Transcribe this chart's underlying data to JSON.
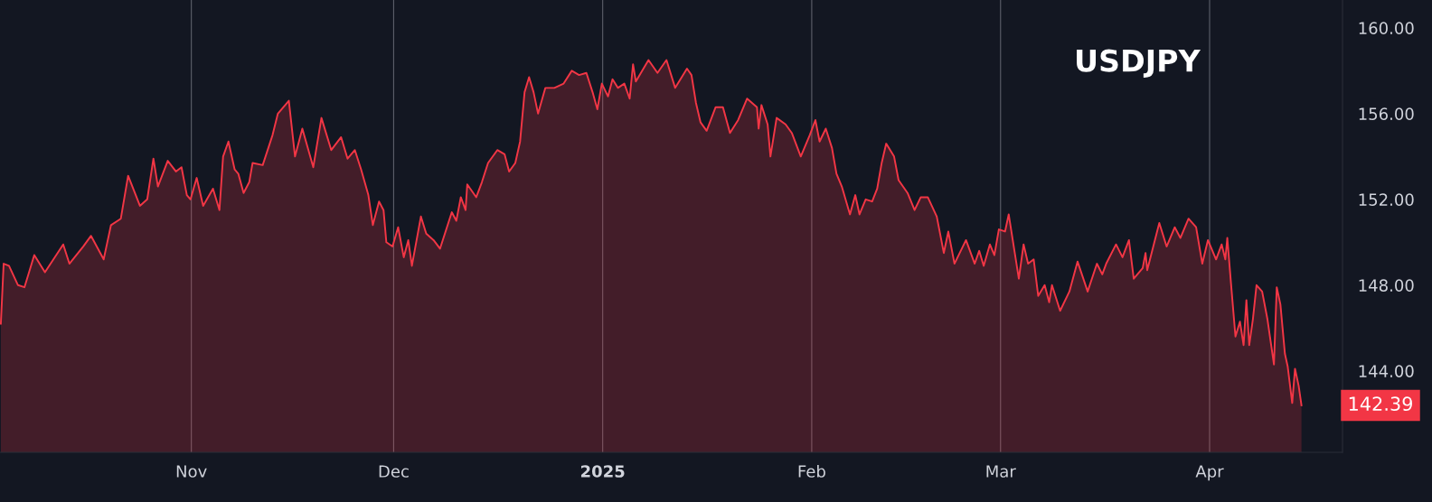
{
  "chart_data": {
    "type": "area",
    "annotations": [
      "USDJPY",
      "142.39"
    ],
    "grid": "x",
    "legend": false,
    "xlim": [
      "2024-10-03T15:00",
      "2025-04-20T17:00"
    ],
    "xticks": [
      {
        "value": "2024-11-01",
        "label": "Nov"
      },
      {
        "value": "2024-12-01",
        "label": "Dec"
      },
      {
        "value": "2025-01-01",
        "label": "2025"
      },
      {
        "value": "2025-02-01",
        "label": "Feb"
      },
      {
        "value": "2025-03-01",
        "label": "Mar"
      },
      {
        "value": "2025-04-01",
        "label": "Apr"
      }
    ],
    "ylim": [
      140.2,
      161.3
    ],
    "yticks": [
      {
        "value": 144,
        "label": "144.00"
      },
      {
        "value": 148,
        "label": "148.00"
      },
      {
        "value": 152,
        "label": "152.00"
      },
      {
        "value": 156,
        "label": "156.00"
      },
      {
        "value": 160,
        "label": "160.00"
      }
    ],
    "series": [
      {
        "color": "#f23645",
        "x": [
          "2024-10-03T18:00",
          "2024-10-04T04:00",
          "2024-10-04T23:00",
          "2024-10-06T07:00",
          "2024-10-07T06:00",
          "2024-10-08T17:00",
          "2024-10-10T07:00",
          "2024-10-13T00:00",
          "2024-10-13T22:00",
          "2024-10-15T23:00",
          "2024-10-17T03:00",
          "2024-10-19T00:00",
          "2024-10-20T02:00",
          "2024-10-21T13:00",
          "2024-10-22T15:00",
          "2024-10-24T09:00",
          "2024-10-25T11:00",
          "2024-10-26T09:00",
          "2024-10-27T01:00",
          "2024-10-28T12:00",
          "2024-10-29T17:00",
          "2024-10-30T13:00",
          "2024-10-31T08:00",
          "2024-10-31T21:00",
          "2024-11-01T19:00",
          "2024-11-02T18:00",
          "2024-11-04T05:00",
          "2024-11-05T04:00",
          "2024-11-05T17:00",
          "2024-11-06T12:00",
          "2024-11-07T10:00",
          "2024-11-07T23:00",
          "2024-11-08T18:00",
          "2024-11-09T14:00",
          "2024-11-10T02:00",
          "2024-11-11T14:00",
          "2024-11-13T01:00",
          "2024-11-13T20:00",
          "2024-11-15T11:00",
          "2024-11-16T09:00",
          "2024-11-17T11:00",
          "2024-11-19T02:00",
          "2024-11-20T07:00",
          "2024-11-21T18:00",
          "2024-11-23T05:00",
          "2024-11-24T04:00",
          "2024-11-25T06:00",
          "2024-11-26T04:00",
          "2024-11-27T06:00",
          "2024-11-27T22:00",
          "2024-11-28T20:00",
          "2024-11-29T12:00",
          "2024-11-29T22:00",
          "2024-11-30T20:00",
          "2024-12-01T16:00",
          "2024-12-02T12:00",
          "2024-12-03T04:00",
          "2024-12-03T17:00",
          "2024-12-05T01:00",
          "2024-12-05T20:00",
          "2024-12-06T22:00",
          "2024-12-07T21:00",
          "2024-12-09T15:00",
          "2024-12-10T07:00",
          "2024-12-10T23:00",
          "2024-12-11T16:00",
          "2024-12-11T22:00",
          "2024-12-13T06:00",
          "2024-12-14T02:00",
          "2024-12-15T00:00",
          "2024-12-16T09:00",
          "2024-12-17T11:00",
          "2024-12-18T03:00",
          "2024-12-19T01:00",
          "2024-12-19T18:00",
          "2024-12-20T10:00",
          "2024-12-21T02:00",
          "2024-12-21T18:00",
          "2024-12-22T10:00",
          "2024-12-23T12:00",
          "2024-12-24T20:00",
          "2024-12-26T05:00",
          "2024-12-27T10:00",
          "2024-12-28T12:00",
          "2024-12-29T14:00",
          "2024-12-30T12:00",
          "2024-12-31T05:00",
          "2024-12-31T21:00",
          "2025-01-01T19:00",
          "2025-01-02T11:00",
          "2025-01-03T06:00",
          "2025-01-04T05:00",
          "2025-01-05T00:00",
          "2025-01-05T12:00",
          "2025-01-05T22:00",
          "2025-01-07T19:00",
          "2025-01-09T03:00",
          "2025-01-10T11:00",
          "2025-01-11T18:00",
          "2025-01-13T12:00",
          "2025-01-14T04:00",
          "2025-01-14T20:00",
          "2025-01-15T12:00",
          "2025-01-16T10:00",
          "2025-01-17T18:00",
          "2025-01-18T20:00",
          "2025-01-19T21:00",
          "2025-01-21T02:00",
          "2025-01-22T10:00",
          "2025-01-23T21:00",
          "2025-01-24T03:00",
          "2025-01-24T13:00",
          "2025-01-25T11:00",
          "2025-01-25T21:00",
          "2025-01-26T19:00",
          "2025-01-28T03:00",
          "2025-01-29T01:00",
          "2025-01-30T09:00",
          "2025-01-31T17:00",
          "2025-02-01T13:00",
          "2025-02-02T04:00",
          "2025-02-03T02:00",
          "2025-02-04T00:00",
          "2025-02-04T16:00",
          "2025-02-05T11:00",
          "2025-02-06T16:00",
          "2025-02-07T11:00",
          "2025-02-08T02:00",
          "2025-02-09T00:00",
          "2025-02-09T23:00",
          "2025-02-10T17:00",
          "2025-02-11T09:00",
          "2025-02-12T01:00",
          "2025-02-13T05:00",
          "2025-02-13T21:00",
          "2025-02-15T05:00",
          "2025-02-16T06:00",
          "2025-02-17T04:00",
          "2025-02-18T05:00",
          "2025-02-19T13:00",
          "2025-02-20T14:00",
          "2025-02-21T06:00",
          "2025-02-22T04:00",
          "2025-02-23T21:00",
          "2025-02-25T04:00",
          "2025-02-25T20:00",
          "2025-02-26T12:00",
          "2025-02-27T10:00",
          "2025-02-28T02:00",
          "2025-02-28T18:00",
          "2025-03-01T16:00",
          "2025-03-02T05:00",
          "2025-03-03T17:00",
          "2025-03-04T10:00",
          "2025-03-05T02:00",
          "2025-03-05T22:00",
          "2025-03-06T14:00",
          "2025-03-07T13:00",
          "2025-03-08T05:00",
          "2025-03-08T15:00",
          "2025-03-09T20:00",
          "2025-03-11T05:00",
          "2025-03-12T10:00",
          "2025-03-13T22:00",
          "2025-03-15T07:00",
          "2025-03-16T02:00",
          "2025-03-16T16:00",
          "2025-03-18T03:00",
          "2025-03-19T02:00",
          "2025-03-20T01:00",
          "2025-03-20T18:00",
          "2025-03-22T02:00",
          "2025-03-22T12:00",
          "2025-03-22T18:00",
          "2025-03-24T13:00",
          "2025-03-25T15:00",
          "2025-03-26T20:00",
          "2025-03-27T16:00",
          "2025-03-28T21:00",
          "2025-03-30T00:00",
          "2025-03-30T22:00",
          "2025-03-31T18:00",
          "2025-04-01T23:00",
          "2025-04-02T19:00",
          "2025-04-03T08:00",
          "2025-04-03T15:00",
          "2025-04-04T04:00",
          "2025-04-04T20:00",
          "2025-04-05T12:00",
          "2025-04-06T01:00",
          "2025-04-06T11:00",
          "2025-04-06T21:00",
          "2025-04-07T10:00",
          "2025-04-07T23:00",
          "2025-04-08T19:00",
          "2025-04-09T14:00",
          "2025-04-10T13:00",
          "2025-04-10T23:00",
          "2025-04-11T12:00",
          "2025-04-12T04:00",
          "2025-04-12T14:00",
          "2025-04-13T06:00",
          "2025-04-13T16:00",
          "2025-04-14T05:00",
          "2025-04-14T15:00"
        ],
        "values": [
          146.2,
          149.0,
          148.9,
          148.0,
          147.9,
          149.4,
          148.6,
          149.9,
          149.0,
          149.8,
          150.3,
          149.2,
          150.8,
          151.1,
          153.1,
          151.7,
          152.0,
          153.9,
          152.6,
          153.8,
          153.3,
          153.5,
          152.2,
          152.0,
          153.0,
          151.7,
          152.5,
          151.5,
          154.0,
          154.7,
          153.4,
          153.2,
          152.3,
          152.8,
          153.7,
          153.6,
          155.0,
          156.0,
          156.6,
          154.0,
          155.3,
          153.5,
          155.8,
          154.3,
          154.9,
          153.9,
          154.3,
          153.4,
          152.2,
          150.8,
          151.9,
          151.5,
          150.0,
          149.8,
          150.7,
          149.3,
          150.1,
          148.9,
          151.2,
          150.4,
          150.1,
          149.7,
          151.4,
          151.0,
          152.1,
          151.5,
          152.7,
          152.1,
          152.8,
          153.7,
          154.3,
          154.1,
          153.3,
          153.7,
          154.7,
          157.0,
          157.7,
          157.0,
          156.0,
          157.2,
          157.2,
          157.4,
          158.0,
          157.8,
          157.9,
          157.0,
          156.2,
          157.4,
          156.8,
          157.6,
          157.2,
          157.4,
          156.7,
          158.3,
          157.5,
          158.5,
          157.9,
          158.5,
          157.2,
          158.1,
          157.8,
          156.5,
          155.6,
          155.2,
          156.3,
          156.3,
          155.1,
          155.7,
          156.7,
          156.3,
          155.3,
          156.4,
          155.5,
          154.0,
          155.8,
          155.5,
          155.1,
          154.0,
          155.0,
          155.7,
          154.7,
          155.3,
          154.4,
          153.2,
          152.6,
          151.3,
          152.2,
          151.3,
          152.0,
          151.9,
          152.5,
          153.7,
          154.6,
          154.0,
          152.9,
          152.3,
          151.5,
          152.1,
          152.1,
          151.2,
          149.5,
          150.5,
          149.0,
          150.1,
          149.0,
          149.6,
          148.9,
          149.9,
          149.4,
          150.6,
          150.5,
          151.3,
          148.3,
          149.9,
          149.0,
          149.2,
          147.5,
          148.0,
          147.2,
          148.0,
          146.8,
          147.7,
          149.1,
          147.7,
          149.0,
          148.5,
          149.0,
          149.9,
          149.3,
          150.1,
          148.3,
          148.8,
          149.5,
          148.7,
          150.9,
          149.8,
          150.7,
          150.2,
          151.1,
          150.7,
          149.0,
          150.1,
          149.2,
          149.9,
          149.2,
          150.2,
          148.1,
          145.6,
          146.3,
          145.2,
          147.3,
          145.2,
          146.4,
          148.0,
          147.7,
          146.4,
          144.3,
          147.9,
          147.1,
          144.8,
          144.2,
          142.5,
          144.1,
          143.3,
          142.39
        ]
      }
    ]
  }
}
